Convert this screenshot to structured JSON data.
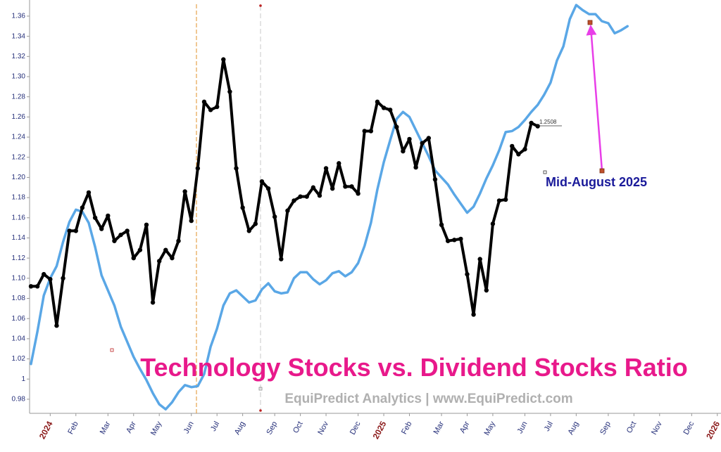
{
  "chart_data": {
    "type": "line",
    "title": "Technology Stocks vs. Dividend Stocks Ratio",
    "subtitle": "EquiPredict Analytics | www.EquiPredict.com",
    "annotation": "Mid-August 2025",
    "last_label": "1.2508",
    "categories": [
      null,
      null,
      null,
      "2024",
      null,
      null,
      null,
      "Feb",
      null,
      null,
      null,
      null,
      "Mar",
      null,
      null,
      null,
      "Apr",
      null,
      null,
      null,
      "May",
      null,
      null,
      null,
      null,
      "Jun",
      null,
      null,
      null,
      "Jul",
      null,
      null,
      null,
      "Aug",
      null,
      null,
      null,
      null,
      "Sep",
      null,
      null,
      null,
      "Oct",
      null,
      null,
      null,
      "Nov",
      null,
      null,
      null,
      null,
      "Dec",
      null,
      null,
      null,
      "2025",
      null,
      null,
      null,
      "Feb",
      null,
      null,
      null,
      null,
      "Mar",
      null,
      null,
      null,
      "Apr",
      null,
      null,
      null,
      "May",
      null,
      null,
      null,
      null,
      "Jun",
      null,
      null,
      null,
      "Jul",
      null,
      null,
      null,
      "Aug",
      null,
      null,
      null,
      null,
      "Sep",
      null,
      null,
      null,
      "Oct",
      null,
      null,
      null,
      "Nov",
      null,
      null,
      null,
      null,
      "Dec",
      null,
      null,
      null,
      "2026"
    ],
    "series": [
      {
        "color": "#5aa7e6",
        "markers": false,
        "values": [
          1.015,
          1.047,
          1.083,
          1.1,
          1.112,
          1.136,
          1.156,
          1.168,
          1.166,
          1.155,
          1.131,
          1.103,
          1.088,
          1.073,
          1.052,
          1.037,
          1.022,
          1.01,
          0.999,
          0.986,
          0.975,
          0.97,
          0.977,
          0.987,
          0.994,
          0.992,
          0.993,
          1.005,
          1.032,
          1.05,
          1.073,
          1.085,
          1.088,
          1.082,
          1.076,
          1.078,
          1.089,
          1.095,
          1.087,
          1.085,
          1.086,
          1.1,
          1.106,
          1.106,
          1.099,
          1.094,
          1.098,
          1.105,
          1.107,
          1.102,
          1.106,
          1.115,
          1.132,
          1.155,
          1.188,
          1.215,
          1.237,
          1.258,
          1.265,
          1.26,
          1.247,
          1.234,
          1.221,
          1.207,
          1.2,
          1.193,
          1.183,
          1.174,
          1.165,
          1.171,
          1.184,
          1.199,
          1.212,
          1.227,
          1.245,
          1.246,
          1.25,
          1.257,
          1.265,
          1.272,
          1.282,
          1.294,
          1.316,
          1.33,
          1.357,
          1.371,
          1.366,
          1.362,
          1.362,
          1.355,
          1.353,
          1.343,
          1.346,
          1.35,
          null,
          null,
          null,
          null,
          null,
          null,
          null,
          null,
          null,
          null,
          null,
          null,
          null,
          null
        ]
      },
      {
        "color": "#000000",
        "markers": true,
        "values": [
          1.092,
          1.092,
          1.104,
          1.099,
          1.053,
          1.1,
          1.147,
          1.147,
          1.17,
          1.185,
          1.16,
          1.149,
          1.162,
          1.137,
          1.143,
          1.147,
          1.12,
          1.128,
          1.153,
          1.076,
          1.117,
          1.128,
          1.12,
          1.137,
          1.186,
          1.157,
          1.209,
          1.275,
          1.267,
          1.27,
          1.317,
          1.285,
          1.209,
          1.17,
          1.147,
          1.154,
          1.196,
          1.189,
          1.161,
          1.119,
          1.167,
          1.177,
          1.181,
          1.181,
          1.19,
          1.182,
          1.209,
          1.189,
          1.214,
          1.191,
          1.191,
          1.184,
          1.246,
          1.246,
          1.275,
          1.269,
          1.267,
          1.25,
          1.226,
          1.238,
          1.21,
          1.234,
          1.239,
          1.198,
          1.153,
          1.137,
          1.138,
          1.139,
          1.104,
          1.064,
          1.119,
          1.088,
          1.154,
          1.177,
          1.178,
          1.231,
          1.223,
          1.228,
          1.254,
          1.2508,
          null,
          null,
          null,
          null,
          null,
          null,
          null,
          null,
          null,
          null,
          null,
          null,
          null,
          null,
          null,
          null,
          null,
          null,
          null,
          null,
          null,
          null,
          null,
          null,
          null,
          null,
          null,
          null
        ]
      }
    ],
    "ylim": [
      0.966,
      1.376
    ],
    "yticks": [
      0.98,
      1,
      1.02,
      1.04,
      1.06,
      1.08,
      {
        "value": 1.1,
        "label": "1.10"
      },
      1.12,
      1.14,
      1.16,
      1.18,
      {
        "value": 1.2,
        "label": "1.20"
      },
      1.22,
      1.24,
      1.26,
      1.28,
      {
        "value": 1.3,
        "label": "1.30"
      },
      1.32,
      1.34,
      1.36
    ],
    "grid": false
  }
}
